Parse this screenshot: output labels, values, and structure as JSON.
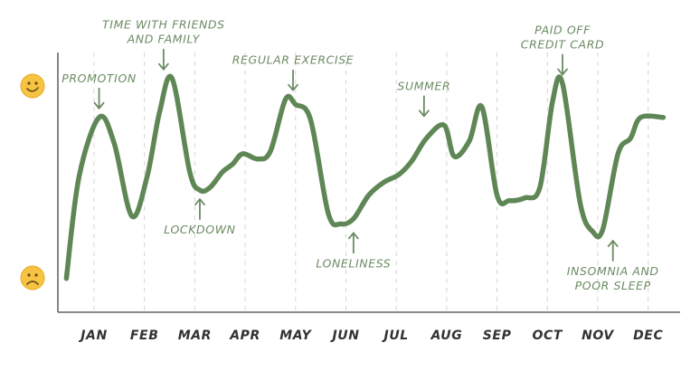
{
  "chart_data": {
    "type": "line",
    "title": "",
    "xlabel": "",
    "ylabel": "",
    "categories": [
      "JAN",
      "FEB",
      "MAR",
      "APR",
      "MAY",
      "JUN",
      "JUL",
      "AUG",
      "SEP",
      "OCT",
      "NOV",
      "DEC"
    ],
    "ylim": [
      0,
      100
    ],
    "y_axis_icons": {
      "top": "happy-face-icon",
      "bottom": "sad-face-icon"
    },
    "grid": "vertical-dashed",
    "series": [
      {
        "name": "",
        "color": "#5f8756",
        "x": [
          -0.55,
          -0.3,
          0.1,
          0.4,
          0.75,
          1.05,
          1.3,
          1.55,
          1.9,
          2.1,
          2.3,
          2.55,
          2.75,
          2.95,
          3.25,
          3.5,
          3.8,
          4.0,
          4.3,
          4.65,
          4.9,
          5.15,
          5.45,
          5.75,
          6.05,
          6.3,
          6.6,
          6.95,
          7.15,
          7.45,
          7.7,
          8.0,
          8.25,
          8.55,
          8.85,
          9.1,
          9.3,
          9.65,
          9.9,
          10.1,
          10.4,
          10.65,
          10.85,
          11.3
        ],
        "values": [
          13,
          52,
          75,
          65,
          37,
          52,
          77,
          90,
          54,
          47,
          48,
          54,
          57,
          61,
          59,
          62,
          82,
          80,
          74,
          38,
          34,
          36,
          45,
          50,
          53,
          58,
          67,
          72,
          60,
          66,
          79,
          45,
          43,
          44,
          48,
          81,
          88,
          42,
          31,
          32,
          61,
          67,
          75,
          75
        ]
      }
    ],
    "annotations": [
      {
        "lines": [
          "PROMOTION"
        ],
        "x": 0.1,
        "y": 75,
        "text_side": "above"
      },
      {
        "lines": [
          "TIME WITH FRIENDS",
          "AND FAMILY"
        ],
        "x": 1.38,
        "y": 90,
        "text_side": "above"
      },
      {
        "lines": [
          "LOCKDOWN"
        ],
        "x": 2.1,
        "y": 47,
        "text_side": "below"
      },
      {
        "lines": [
          "REGULAR EXERCISE"
        ],
        "x": 3.95,
        "y": 82,
        "text_side": "above"
      },
      {
        "lines": [
          "LONELINESS"
        ],
        "x": 5.15,
        "y": 34,
        "text_side": "below"
      },
      {
        "lines": [
          "SUMMER"
        ],
        "x": 6.55,
        "y": 72,
        "text_side": "above"
      },
      {
        "lines": [
          "PAID OFF",
          "CREDIT CARD"
        ],
        "x": 9.3,
        "y": 88,
        "text_side": "above"
      },
      {
        "lines": [
          "INSOMNIA AND",
          "POOR SLEEP"
        ],
        "x": 10.3,
        "y": 31,
        "text_side": "below"
      }
    ]
  }
}
